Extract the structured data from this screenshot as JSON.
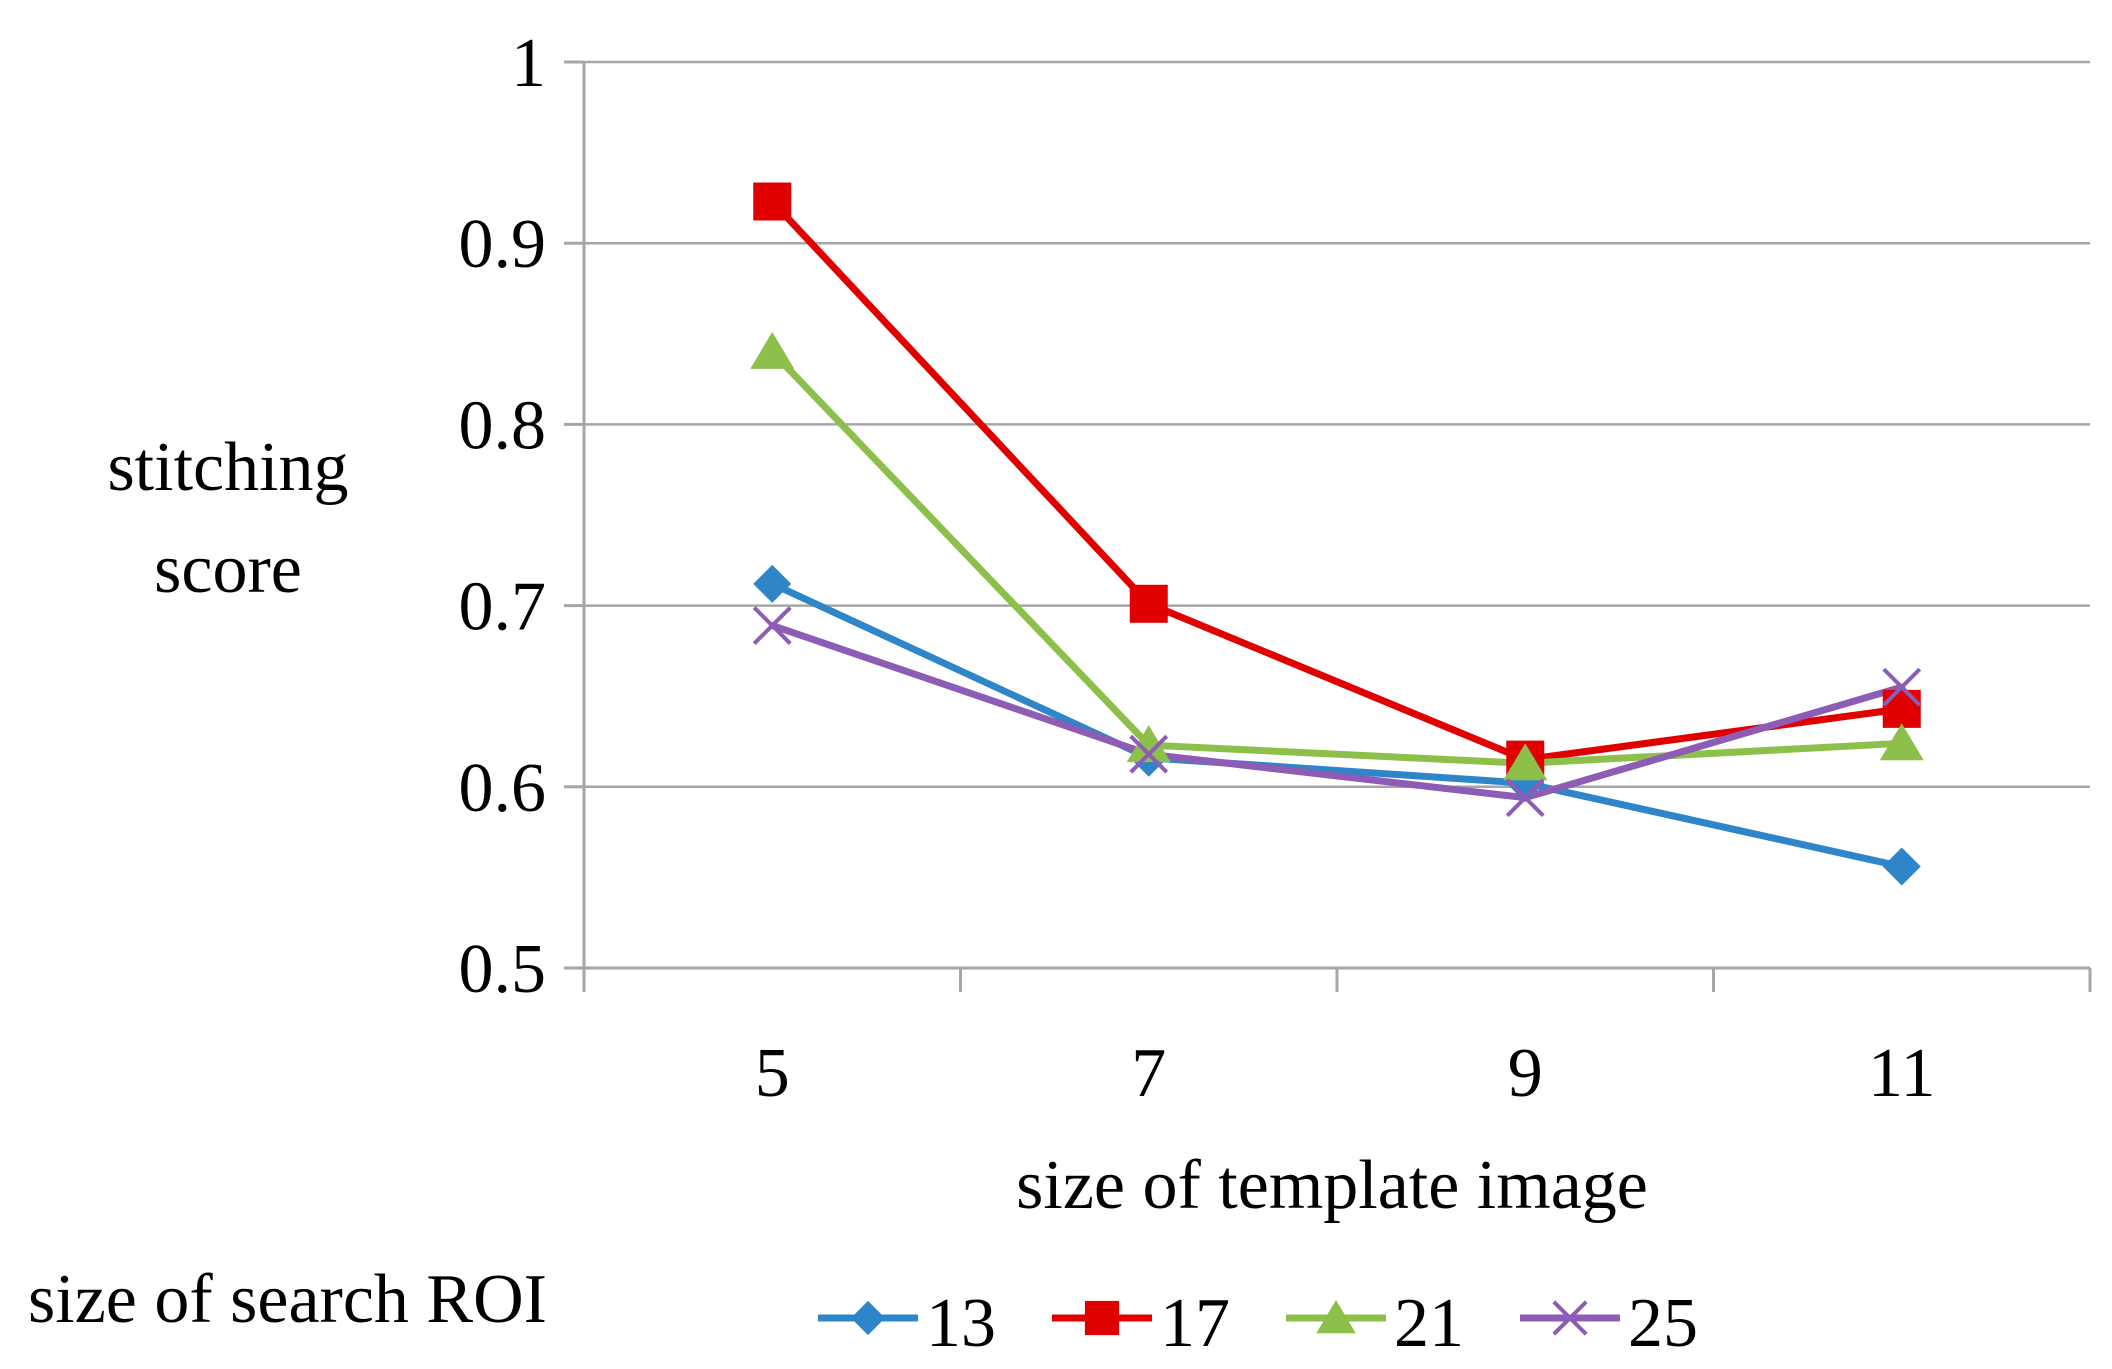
{
  "chart_data": {
    "type": "line",
    "title": "",
    "xlabel": "size of template image",
    "ylabel_lines": [
      "stitching",
      "score"
    ],
    "categories": [
      "5",
      "7",
      "9",
      "11"
    ],
    "ylim": [
      0.5,
      1
    ],
    "yticks": [
      "0.5",
      "0.6",
      "0.7",
      "0.8",
      "0.9",
      "1"
    ],
    "ytick_values": [
      0.5,
      0.6,
      0.7,
      0.8,
      0.9,
      1.0
    ],
    "grid": true,
    "legend_position": "bottom",
    "legend_title": "size of search ROI",
    "series": [
      {
        "name": "13",
        "color": "#2E86C8",
        "marker": "diamond",
        "values": [
          0.712,
          0.616,
          0.602,
          0.556
        ]
      },
      {
        "name": "17",
        "color": "#E00000",
        "marker": "square",
        "values": [
          0.923,
          0.701,
          0.615,
          0.643
        ]
      },
      {
        "name": "21",
        "color": "#8DC04B",
        "marker": "triangle",
        "values": [
          0.84,
          0.623,
          0.613,
          0.624
        ]
      },
      {
        "name": "25",
        "color": "#8D5CB4",
        "marker": "x",
        "values": [
          0.689,
          0.618,
          0.594,
          0.655
        ]
      }
    ]
  }
}
